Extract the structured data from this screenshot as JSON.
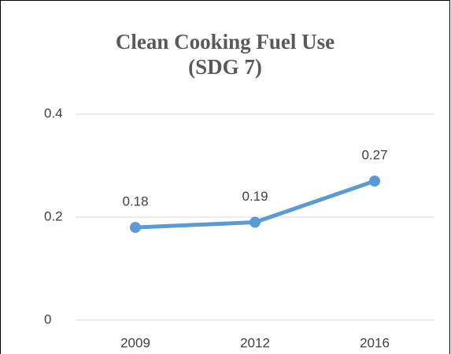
{
  "chart_data": {
    "type": "line",
    "title": [
      "Clean Cooking Fuel Use",
      "(SDG 7)"
    ],
    "categories": [
      "2009",
      "2012",
      "2016"
    ],
    "series": [
      {
        "color": "#5b9bd5",
        "values": [
          0.18,
          0.19,
          0.27
        ],
        "value_labels": [
          "0.18",
          "0.19",
          "0.27"
        ]
      }
    ],
    "ylim": [
      0,
      0.4
    ],
    "yticks": [
      0,
      0.2,
      0.4
    ],
    "grid": true
  }
}
